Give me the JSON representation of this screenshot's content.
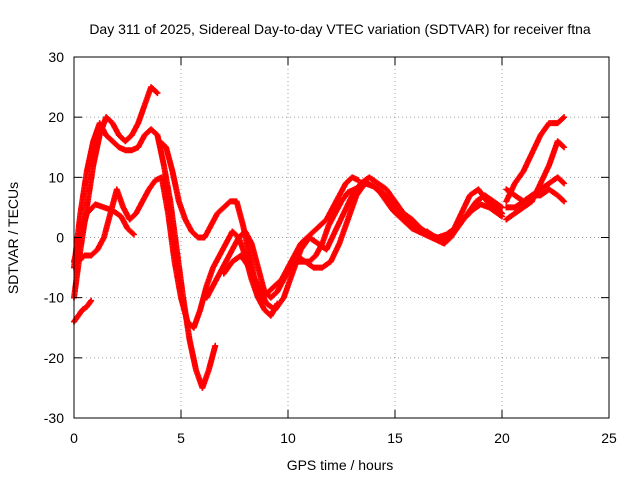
{
  "chart_data": {
    "type": "scatter",
    "title": "Day 311 of 2025, Sidereal Day-to-day VTEC variation (SDTVAR) for receiver ftna",
    "xlabel": "GPS time / hours",
    "ylabel": "SDTVAR / TECUs",
    "xlim": [
      0,
      25
    ],
    "ylim": [
      -30,
      30
    ],
    "xticks": [
      0,
      5,
      10,
      15,
      20,
      25
    ],
    "yticks": [
      -30,
      -20,
      -10,
      0,
      10,
      20,
      30
    ],
    "grid": true,
    "marker": "+",
    "color": "#ff0000",
    "series": [
      {
        "name": "satellite-track-1",
        "x": [
          0.0,
          0.3,
          0.6,
          0.9,
          1.2,
          1.5,
          1.8,
          2.1,
          2.4,
          2.7,
          3.0,
          3.3,
          3.6,
          3.9,
          4.2,
          4.5,
          4.8,
          5.1,
          5.4,
          5.7,
          6.0,
          6.3,
          6.6
        ],
        "y": [
          -5,
          4,
          11,
          16,
          19,
          17,
          16,
          15,
          14.5,
          14.5,
          15,
          17,
          18,
          17,
          12,
          6,
          -2,
          -10,
          -17,
          -22,
          -25,
          -22,
          -18
        ]
      },
      {
        "name": "satellite-track-2",
        "x": [
          0.0,
          0.3,
          0.6,
          0.9,
          1.2,
          1.5,
          1.8,
          2.1,
          2.4,
          2.7,
          3.0,
          3.3,
          3.6,
          3.9
        ],
        "y": [
          -10,
          -2,
          5,
          12,
          17,
          20,
          19,
          17,
          16,
          17,
          19,
          22,
          25,
          24
        ]
      },
      {
        "name": "satellite-track-3",
        "x": [
          0.0,
          0.2,
          0.4,
          0.6,
          0.8
        ],
        "y": [
          -14,
          -13,
          -12,
          -11.5,
          -10.5
        ]
      },
      {
        "name": "satellite-track-4",
        "x": [
          0.0,
          0.3,
          0.6,
          1.0,
          1.4,
          1.8,
          2.2,
          2.5,
          2.8
        ],
        "y": [
          -4,
          0,
          4,
          5.5,
          5,
          4.5,
          3.5,
          1.5,
          0.5
        ]
      },
      {
        "name": "satellite-track-5",
        "x": [
          0.2,
          0.5,
          0.8,
          1.1,
          1.4,
          1.7,
          2.0,
          2.3,
          2.6,
          2.9,
          3.2,
          3.5,
          3.8,
          4.1,
          4.4,
          4.7,
          5.0,
          5.3,
          5.6,
          5.9,
          6.2,
          6.5,
          6.8,
          7.1,
          7.4,
          7.7,
          8.0,
          8.3,
          8.6,
          8.9,
          9.2,
          9.5
        ],
        "y": [
          -4,
          -3,
          -3,
          -2,
          0,
          4,
          8,
          5,
          3,
          4,
          6,
          8,
          9.5,
          10,
          4,
          -4,
          -10,
          -14,
          -15,
          -12,
          -8,
          -5,
          -3,
          -1,
          1,
          0,
          -3,
          -7,
          -10,
          -12,
          -13,
          -11
        ]
      },
      {
        "name": "satellite-track-6",
        "x": [
          4.0,
          4.3,
          4.6,
          4.9,
          5.2,
          5.5,
          5.8,
          6.1,
          6.4,
          6.7,
          7.0,
          7.3,
          7.6,
          7.9,
          8.2,
          8.5,
          8.8,
          9.1,
          9.4,
          9.7,
          10.0,
          10.3,
          10.6,
          10.9,
          11.2,
          11.5,
          11.8,
          12.1,
          12.4,
          12.7,
          13.0,
          13.3
        ],
        "y": [
          16,
          15,
          11,
          6,
          3,
          1,
          0,
          0,
          2,
          4,
          5,
          6,
          6,
          2,
          -3,
          -8,
          -10,
          -9,
          -8,
          -7,
          -5,
          -3,
          -1,
          0,
          1,
          2,
          3,
          5,
          7,
          9,
          10,
          9.5
        ]
      },
      {
        "name": "satellite-track-7",
        "x": [
          6.2,
          6.5,
          6.8,
          7.1,
          7.4,
          7.7,
          8.0,
          8.3,
          8.6,
          8.9,
          9.2,
          9.5,
          9.8,
          10.1,
          10.4,
          10.7,
          11.0,
          11.3,
          11.6,
          11.9,
          12.2,
          12.5,
          12.8,
          13.1,
          13.4,
          13.7,
          14.0,
          14.3,
          14.6,
          14.9,
          15.2,
          15.5,
          15.8,
          16.1,
          16.4,
          16.7,
          17.0,
          17.3,
          17.6
        ],
        "y": [
          -10,
          -8,
          -6,
          -4,
          -2,
          0,
          1,
          -1,
          -5,
          -9,
          -10,
          -9,
          -7,
          -5,
          -4,
          -4,
          -4,
          -3,
          -1,
          2,
          4,
          6,
          7.5,
          8,
          8.5,
          9,
          8.5,
          7.5,
          6,
          4.5,
          3.5,
          2.5,
          1.5,
          1,
          0.5,
          0,
          -0.5,
          -1,
          0
        ]
      },
      {
        "name": "satellite-track-8",
        "x": [
          7.0,
          7.4,
          7.8,
          8.2,
          8.6,
          9.0,
          9.4,
          9.8,
          10.2,
          10.6,
          11.0,
          11.4,
          11.8,
          12.2,
          12.6,
          13.0,
          13.4,
          13.8,
          14.2,
          14.6,
          15.0,
          15.4,
          15.8,
          16.2,
          16.6,
          17.0,
          17.4,
          17.8,
          18.2,
          18.6,
          19.0,
          19.4,
          19.8,
          20.0
        ],
        "y": [
          -6,
          -4,
          -3,
          -5,
          -8,
          -11,
          -12,
          -10,
          -6,
          -2,
          0,
          -1,
          -2,
          1,
          4,
          7,
          9,
          10,
          9,
          8,
          6,
          4,
          3,
          1.5,
          0.5,
          0,
          0.5,
          1.5,
          3,
          4.5,
          5.5,
          5,
          4,
          3.5
        ]
      },
      {
        "name": "satellite-track-9",
        "x": [
          10.0,
          10.4,
          10.8,
          11.2,
          11.6,
          12.0,
          12.4,
          12.8,
          13.2,
          13.6,
          14.0,
          14.4,
          14.8,
          15.2,
          15.6,
          16.0,
          16.4,
          16.8,
          17.2,
          17.6,
          18.0,
          18.4,
          18.8,
          19.2,
          19.6,
          20.0
        ],
        "y": [
          -5,
          -3,
          -4,
          -5,
          -5,
          -4,
          -1,
          3,
          7,
          9,
          8.5,
          7.5,
          6,
          4.5,
          3,
          2,
          1,
          0,
          -0.5,
          0,
          2,
          4,
          6,
          7,
          6,
          5
        ]
      },
      {
        "name": "satellite-track-10",
        "x": [
          16.5,
          16.9,
          17.3,
          17.7,
          18.1,
          18.5,
          18.9,
          19.3,
          19.7,
          20.0
        ],
        "y": [
          1,
          0,
          -1,
          1,
          4,
          7,
          8,
          6,
          5,
          4
        ]
      },
      {
        "name": "satellite-track-11",
        "x": [
          20.2,
          20.6,
          21.0,
          21.4,
          21.8,
          22.2,
          22.6,
          22.9
        ],
        "y": [
          6,
          9,
          11,
          14,
          17,
          19,
          19,
          20
        ]
      },
      {
        "name": "satellite-track-12",
        "x": [
          20.2,
          20.6,
          21.0,
          21.4,
          21.8,
          22.2,
          22.6,
          22.9
        ],
        "y": [
          8,
          7,
          6,
          7,
          8,
          9,
          10,
          9
        ]
      },
      {
        "name": "satellite-track-13",
        "x": [
          20.2,
          20.6,
          21.0,
          21.4,
          21.8,
          22.2,
          22.6,
          22.9
        ],
        "y": [
          5,
          5,
          6,
          7,
          7,
          8,
          7,
          6
        ]
      },
      {
        "name": "satellite-track-14",
        "x": [
          20.2,
          20.6,
          21.0,
          21.4,
          21.8,
          22.2,
          22.6,
          22.9
        ],
        "y": [
          3,
          4,
          5,
          6,
          9,
          12,
          16,
          15
        ]
      }
    ]
  }
}
